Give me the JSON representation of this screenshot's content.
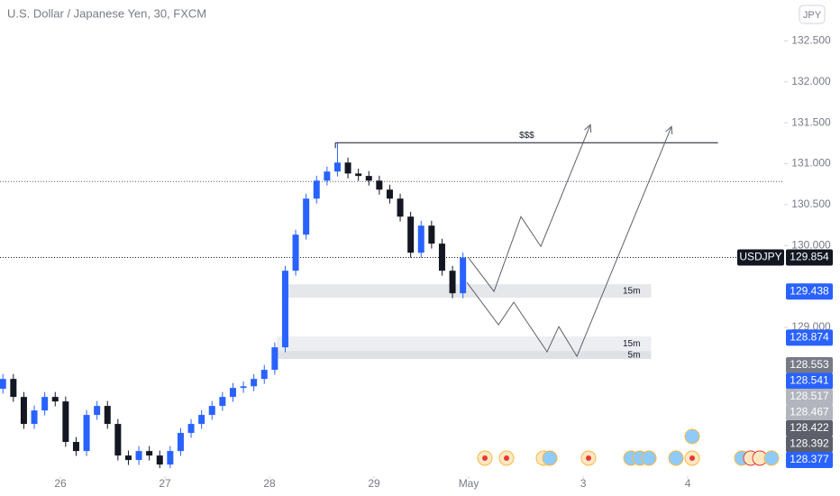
{
  "chart_data": {
    "type": "candlestick",
    "title": "U.S. Dollar / Japanese Yen, 30, FXCM",
    "currency": "JPY",
    "symbol": "USDJPY",
    "up_color": "#2962ff",
    "down_color": "#131722",
    "xlim": [
      25.422,
      32.922
    ],
    "ylim": [
      127.27,
      133.0
    ],
    "xticks": [
      26,
      27,
      28,
      29,
      {
        "value": 29.905,
        "label": "May"
      },
      {
        "value": 31,
        "label": "3"
      },
      {
        "value": 32,
        "label": "4"
      }
    ],
    "yticks": [
      {
        "value": 132.5,
        "label": "132.500"
      },
      {
        "value": 132,
        "label": "132.000"
      },
      {
        "value": 131.5,
        "label": "131.500"
      },
      {
        "value": 131,
        "label": "131.000"
      },
      {
        "value": 130.5,
        "label": "130.500"
      },
      {
        "value": 130,
        "label": "130.000"
      },
      {
        "value": 129,
        "label": "129.000"
      }
    ],
    "x": [
      25.45,
      25.55,
      25.65,
      25.75,
      25.85,
      25.95,
      26.05,
      26.15,
      26.25,
      26.35,
      26.45,
      26.55,
      26.65,
      26.75,
      26.85,
      26.95,
      27.05,
      27.15,
      27.25,
      27.35,
      27.45,
      27.55,
      27.65,
      27.75,
      27.85,
      27.95,
      28.05,
      28.15,
      28.25,
      28.35,
      28.45,
      28.55,
      28.65,
      28.75,
      28.85,
      28.95,
      29.05,
      29.15,
      29.25,
      29.35,
      29.45,
      29.55,
      29.65,
      29.75,
      29.85
    ],
    "open": [
      128.25,
      128.37,
      128.15,
      127.82,
      127.985,
      128.15,
      128.095,
      127.6,
      127.489,
      127.93,
      128.04,
      127.82,
      127.434,
      127.379,
      127.489,
      127.434,
      127.324,
      127.489,
      127.71,
      127.82,
      127.93,
      128.04,
      128.15,
      128.26,
      128.28,
      128.37,
      128.481,
      128.756,
      129.692,
      130.133,
      130.573,
      130.793,
      130.904,
      131.014,
      130.88,
      130.85,
      130.793,
      130.683,
      130.573,
      130.353,
      129.912,
      130.243,
      130.023,
      129.692,
      129.417
    ],
    "high": [
      128.43,
      128.43,
      128.21,
      128.045,
      128.21,
      128.21,
      128.155,
      127.66,
      127.99,
      128.1,
      128.1,
      127.88,
      127.494,
      127.549,
      127.549,
      127.494,
      127.549,
      127.77,
      127.88,
      127.99,
      128.1,
      128.21,
      128.32,
      128.34,
      128.43,
      128.541,
      128.816,
      129.752,
      130.193,
      130.633,
      130.853,
      130.964,
      131.256,
      131.074,
      130.94,
      130.91,
      130.853,
      130.743,
      130.633,
      130.413,
      130.303,
      130.303,
      130.083,
      129.752,
      129.914
    ],
    "low": [
      128.19,
      128.09,
      127.76,
      127.76,
      127.925,
      128.035,
      127.54,
      127.429,
      127.429,
      127.87,
      127.76,
      127.374,
      127.319,
      127.319,
      127.374,
      127.28,
      127.28,
      127.429,
      127.65,
      127.76,
      127.87,
      127.98,
      128.09,
      128.2,
      128.22,
      128.31,
      128.421,
      128.696,
      129.632,
      130.073,
      130.513,
      130.733,
      130.844,
      130.82,
      130.79,
      130.733,
      130.623,
      130.513,
      130.293,
      129.852,
      129.852,
      129.963,
      129.632,
      129.357,
      129.357
    ],
    "close": [
      128.37,
      128.15,
      127.82,
      127.985,
      128.15,
      128.095,
      127.6,
      127.489,
      127.93,
      128.04,
      127.82,
      127.434,
      127.379,
      127.489,
      127.434,
      127.324,
      127.489,
      127.71,
      127.82,
      127.93,
      128.04,
      128.15,
      128.26,
      128.28,
      128.37,
      128.481,
      128.756,
      129.692,
      130.133,
      130.573,
      130.793,
      130.904,
      131.014,
      130.88,
      130.85,
      130.793,
      130.683,
      130.573,
      130.353,
      129.912,
      130.243,
      130.023,
      129.692,
      129.417,
      129.854
    ],
    "levels": [
      130.782
    ],
    "resistance": {
      "label": "$$$",
      "y": 131.256,
      "x0": 28.63,
      "x1": 32.29
    },
    "zones": [
      {
        "label": "15m",
        "y0": 129.527,
        "y1": 129.362,
        "x0": 28.16,
        "x1": 31.65
      },
      {
        "label": "15m",
        "y0": 128.888,
        "y1": 128.712,
        "x0": 28.07,
        "x1": 31.65
      },
      {
        "label": "5m",
        "y0": 128.712,
        "y1": 128.613,
        "x0": 28.07,
        "x1": 31.65
      }
    ],
    "paths": [
      {
        "x": [
          29.905,
          30.147,
          30.405,
          30.595,
          31.069
        ],
        "y": [
          129.846,
          129.439,
          130.353,
          129.989,
          131.476
        ]
      },
      {
        "x": [
          29.888,
          30.19,
          30.336,
          30.655,
          30.767,
          30.94,
          31.845
        ],
        "y": [
          129.549,
          129.031,
          129.307,
          128.701,
          129.009,
          128.646,
          131.454
        ]
      }
    ],
    "price_labels": [
      {
        "value": 129.438,
        "color": "#2962ff"
      },
      {
        "value": 128.874,
        "color": "#2962ff"
      },
      {
        "value": 128.553,
        "color": "#787b86"
      },
      {
        "value": 128.541,
        "color": "#2962ff"
      },
      {
        "value": 128.517,
        "color": "#b2b5be"
      },
      {
        "value": 128.467,
        "color": "#b2b5be"
      },
      {
        "value": 128.422,
        "color": "#5d606b"
      },
      {
        "value": 128.392,
        "color": "#5d606b"
      },
      {
        "value": 128.377,
        "color": "#2962ff"
      }
    ]
  }
}
